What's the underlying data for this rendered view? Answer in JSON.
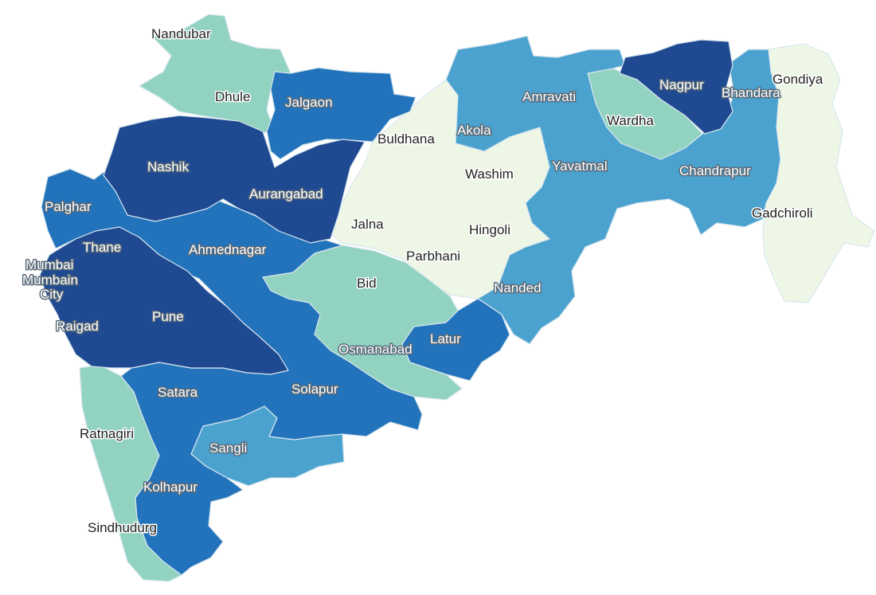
{
  "map": {
    "palette": {
      "darkest": "#1f4a92",
      "dark": "#2273bb",
      "medium": "#4ba2cf",
      "light": "#91d2c1",
      "lightest": "#eef7e6",
      "border": "#d8e6ee"
    },
    "districts": {
      "nandubar": "Nandubar",
      "dhule": "Dhule",
      "jalgaon": "Jalgaon",
      "buldhana": "Buldhana",
      "akola": "Akola",
      "amravati": "Amravati",
      "nagpur": "Nagpur",
      "bhandara": "Bhandara",
      "gondiya": "Gondiya",
      "wardha": "Wardha",
      "washim": "Washim",
      "yavatmal": "Yavatmal",
      "chandrapur": "Chandrapur",
      "gadchiroli": "Gadchiroli",
      "nashik": "Nashik",
      "aurangabad": "Aurangabad",
      "palghar": "Palghar",
      "jalna": "Jalna",
      "hingoli": "Hingoli",
      "thane": "Thane",
      "ahmednagar": "Ahmednagar",
      "parbhani": "Parbhani",
      "mumbai": "Mumbai",
      "mumbai_city_1": "Mumbain",
      "mumbai_city_2": "City",
      "bid": "Bid",
      "nanded": "Nanded",
      "raigad": "Raigad",
      "pune": "Pune",
      "latur": "Latur",
      "osmanabad": "Osmanabad",
      "satara": "Satara",
      "solapur": "Solapur",
      "ratnagiri": "Ratnagiri",
      "sangli": "Sangli",
      "kolhapur": "Kolhapur",
      "sindhudurg": "Sindhudurg"
    }
  }
}
